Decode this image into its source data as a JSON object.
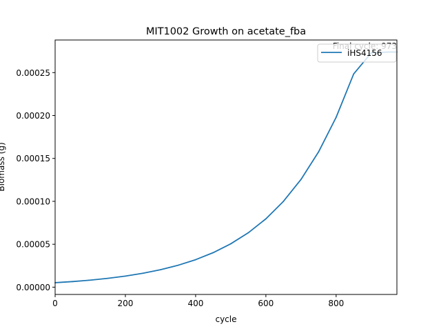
{
  "chart_data": {
    "type": "line",
    "title": "MIT1002 Growth on acetate_fba",
    "xlabel": "cycle",
    "ylabel": "Biomass (g)",
    "annotation": "Final cycle: 973",
    "xlim": [
      0,
      973
    ],
    "ylim": [
      -8.5e-06,
      0.000288
    ],
    "xticks": [
      0,
      200,
      400,
      600,
      800
    ],
    "xtick_labels": [
      "0",
      "200",
      "400",
      "600",
      "800"
    ],
    "yticks": [
      0,
      5e-05,
      0.0001,
      0.00015,
      0.0002,
      0.00025
    ],
    "ytick_labels": [
      "0.00000",
      "0.00005",
      "0.00010",
      "0.00015",
      "0.00020",
      "0.00025"
    ],
    "legend_position": "top-right",
    "grid": false,
    "series": [
      {
        "name": "iHS4156",
        "color": "#1f77b4",
        "x": [
          0,
          50,
          100,
          150,
          200,
          250,
          300,
          350,
          400,
          450,
          500,
          550,
          600,
          650,
          700,
          750,
          800,
          850,
          900,
          950,
          973
        ],
        "y": [
          5.2e-06,
          6.5e-06,
          8.2e-06,
          1.03e-05,
          1.29e-05,
          1.62e-05,
          2.03e-05,
          2.55e-05,
          3.2e-05,
          4.02e-05,
          5.05e-05,
          6.34e-05,
          7.96e-05,
          0.0001,
          0.0001255,
          0.0001576,
          0.0001979,
          0.0002485,
          0.000273,
          0.000274,
          0.000274
        ]
      }
    ]
  }
}
